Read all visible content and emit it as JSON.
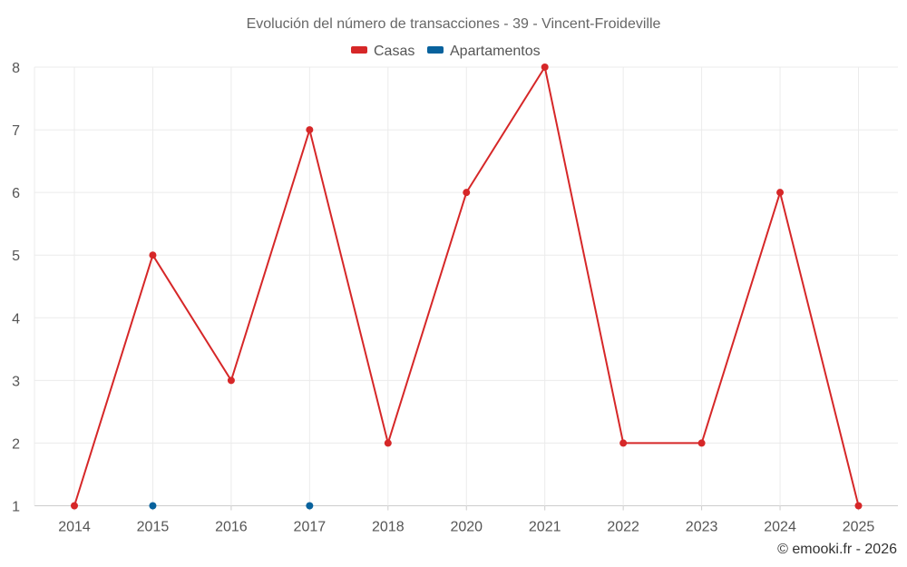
{
  "chart_data": {
    "type": "line",
    "title": "Evolución del número de transacciones - 39 - Vincent-Froideville",
    "categories": [
      "2014",
      "2015",
      "2016",
      "2017",
      "2018",
      "2020",
      "2021",
      "2022",
      "2023",
      "2024",
      "2025"
    ],
    "series": [
      {
        "name": "Casas",
        "color": "#d62728",
        "values": [
          1,
          5,
          3,
          7,
          2,
          6,
          8,
          2,
          2,
          6,
          1
        ]
      },
      {
        "name": "Apartamentos",
        "color": "#08629d",
        "values": [
          null,
          1,
          null,
          1,
          null,
          null,
          null,
          null,
          null,
          null,
          null
        ]
      }
    ],
    "ylim": [
      1,
      8
    ],
    "yticks": [
      1,
      2,
      3,
      4,
      5,
      6,
      7,
      8
    ],
    "grid": true,
    "legend_position": "top-center",
    "xlabel": "",
    "ylabel": ""
  },
  "credit": "© emooki.fr - 2026"
}
